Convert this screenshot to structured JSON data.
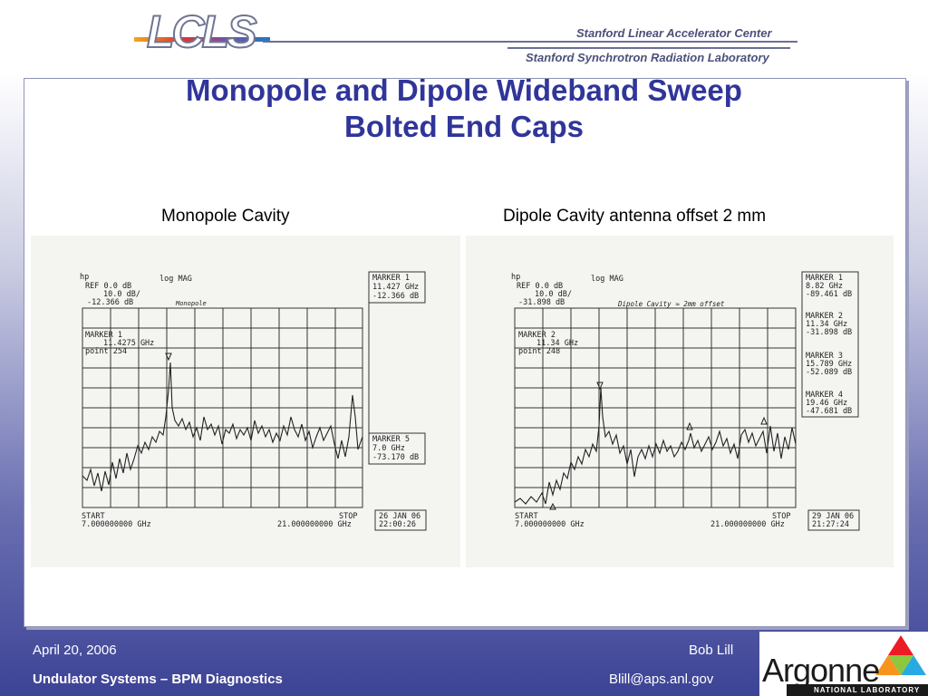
{
  "header": {
    "logo_text": "LCLS",
    "org_line1": "Stanford Linear Accelerator Center",
    "org_line2": "Stanford Synchrotron Radiation Laboratory"
  },
  "slide": {
    "title_line1": "Monopole and Dipole Wideband Sweep",
    "title_line2": "Bolted End Caps",
    "caption_left": "Monopole Cavity",
    "caption_right": "Dipole Cavity antenna offset 2 mm"
  },
  "scan_left": {
    "hp": "hp",
    "ref": "REF 0.0 dB",
    "scale": "10.0 dB/",
    "ref_val": "-12.366 dB",
    "mode": "log MAG",
    "note": "Monopole",
    "marker_box_title": "MARKER 1",
    "marker_box_freq": "11.427 GHz",
    "marker_box_val": "-12.366 dB",
    "inset_label": "MARKER 1",
    "inset_freq": "11.4275 GHz",
    "inset_point": "point 254",
    "marker5_title": "MARKER 5",
    "marker5_freq": "7.0 GHz",
    "marker5_val": "-73.170 dB",
    "start_label": "START",
    "start_val": "7.000000000 GHz",
    "stop_label": "STOP",
    "stop_val": "21.000000000 GHz",
    "date": "26 JAN 06",
    "time": "22:00:26"
  },
  "scan_right": {
    "hp": "hp",
    "ref": "REF 0.0 dB",
    "scale": "10.0 dB/",
    "ref_val": "-31.898 dB",
    "mode": "log MAG",
    "note": "Dipole Cavity ≈ 2mm offset",
    "inset_label": "MARKER 2",
    "inset_freq": "11.34 GHz",
    "inset_point": "point 248",
    "markers": [
      {
        "title": "MARKER 1",
        "freq": "8.82 GHz",
        "val": "-89.461 dB"
      },
      {
        "title": "MARKER 2",
        "freq": "11.34 GHz",
        "val": "-31.898 dB"
      },
      {
        "title": "MARKER 3",
        "freq": "15.789 GHz",
        "val": "-52.089 dB"
      },
      {
        "title": "MARKER 4",
        "freq": "19.46 GHz",
        "val": "-47.681 dB"
      }
    ],
    "start_label": "START",
    "start_val": "7.000000000 GHz",
    "stop_label": "STOP",
    "stop_val": "21.000000000 GHz",
    "date": "29 JAN 06",
    "time": "21:27:24"
  },
  "footer": {
    "date": "April 20, 2006",
    "project": "Undulator Systems – BPM Diagnostics",
    "author": "Bob Lill",
    "email": "Blill@aps.anl.gov",
    "lab_name": "Argonne",
    "lab_tag": "NATIONAL LABORATORY",
    "accent_colors": [
      "#f7941d",
      "#ed1c24",
      "#8dc63f",
      "#27aae1"
    ]
  }
}
